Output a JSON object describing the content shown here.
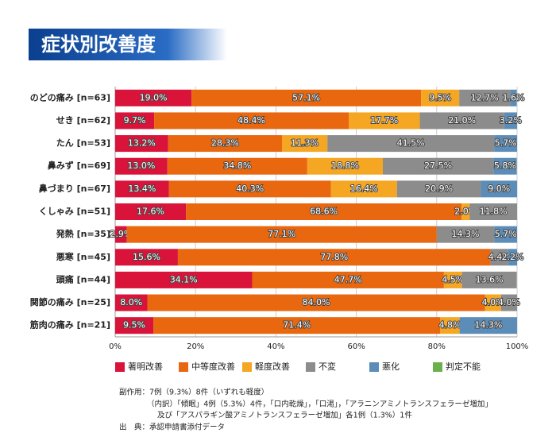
{
  "chart_data": {
    "type": "stacked-bar-horizontal",
    "title": "症状別改善度",
    "categories": [
      "のどの痛み [n=63]",
      "せき [n=62]",
      "たん [n=53]",
      "鼻みず [n=69]",
      "鼻づまり [n=67]",
      "くしゃみ [n=51]",
      "発熱 [n=35]",
      "悪寒 [n=45]",
      "頭痛 [n=44]",
      "関節の痛み [n=25]",
      "筋肉の痛み [n=21]"
    ],
    "series": [
      {
        "name": "著明改善",
        "color": "#d9133a",
        "values": [
          19.0,
          9.7,
          13.2,
          13.0,
          13.4,
          17.6,
          2.9,
          15.6,
          34.1,
          8.0,
          9.5
        ],
        "value_labels": [
          "19.0%",
          "9.7%",
          "13.2%",
          "13.0%",
          "13.4%",
          "17.6%",
          "2.9%",
          "15.6%",
          "34.1%",
          "8.0%",
          "9.5%"
        ]
      },
      {
        "name": "中等度改善",
        "color": "#e8670f",
        "values": [
          57.1,
          48.4,
          28.3,
          34.8,
          40.3,
          68.6,
          77.1,
          77.8,
          47.7,
          84.0,
          71.4
        ],
        "value_labels": [
          "57.1%",
          "48.4%",
          "28.3%",
          "34.8%",
          "40.3%",
          "68.6%",
          "77.1%",
          "77.8%",
          "47.7%",
          "84.0%",
          "71.4%"
        ]
      },
      {
        "name": "軽度改善",
        "color": "#f5a623",
        "values": [
          9.5,
          17.7,
          11.3,
          18.8,
          16.4,
          2.0,
          null,
          null,
          4.5,
          4.0,
          4.8
        ],
        "value_labels": [
          "9.5%",
          "17.7%",
          "11.3%",
          "18.8%",
          "16.4%",
          "2.0%",
          null,
          null,
          "4.5%",
          "4.0%",
          "4.8%"
        ]
      },
      {
        "name": "不変",
        "color": "#8c8c8c",
        "values": [
          12.7,
          21.0,
          41.5,
          27.5,
          20.9,
          11.8,
          14.3,
          4.4,
          13.6,
          4.0,
          null
        ],
        "value_labels": [
          "12.7%",
          "21.0%",
          "41.5%",
          "27.5%",
          "20.9%",
          "11.8%",
          "14.3%",
          "4.4%",
          "13.6%",
          "4.0%",
          null
        ]
      },
      {
        "name": "悪化",
        "color": "#5b8db8",
        "values": [
          1.6,
          3.2,
          5.7,
          5.8,
          9.0,
          null,
          5.7,
          2.2,
          null,
          null,
          14.3
        ],
        "value_labels": [
          "1.6%",
          "3.2%",
          "5.7%",
          "5.8%",
          "9.0%",
          null,
          "5.7%",
          "2.2%",
          null,
          null,
          "14.3%"
        ]
      },
      {
        "name": "判定不能",
        "color": "#6ab04c",
        "values": [
          null,
          null,
          null,
          null,
          null,
          null,
          null,
          null,
          null,
          null,
          null
        ]
      }
    ],
    "xlim": [
      0,
      100
    ],
    "xticks": [
      {
        "value": 0,
        "label": "0%"
      },
      {
        "value": 20,
        "label": "20%"
      },
      {
        "value": 40,
        "label": "40%"
      },
      {
        "value": 60,
        "label": "60%"
      },
      {
        "value": 80,
        "label": "80%"
      },
      {
        "value": 100,
        "label": "100%"
      }
    ],
    "grid": true
  },
  "notes": [
    "副作用：7例（9.3%）8件（いずれも軽度）",
    "（内訳）「傾眠」4例（5.3%）4件，「口内乾燥」，「口渇」，「アラニンアミノトランスフェラーゼ増加」",
    "及び「アスパラギン酸アミノトランスフェラーゼ増加」各1例（1.3%）1件",
    "出　典：承認申請書添付データ"
  ]
}
